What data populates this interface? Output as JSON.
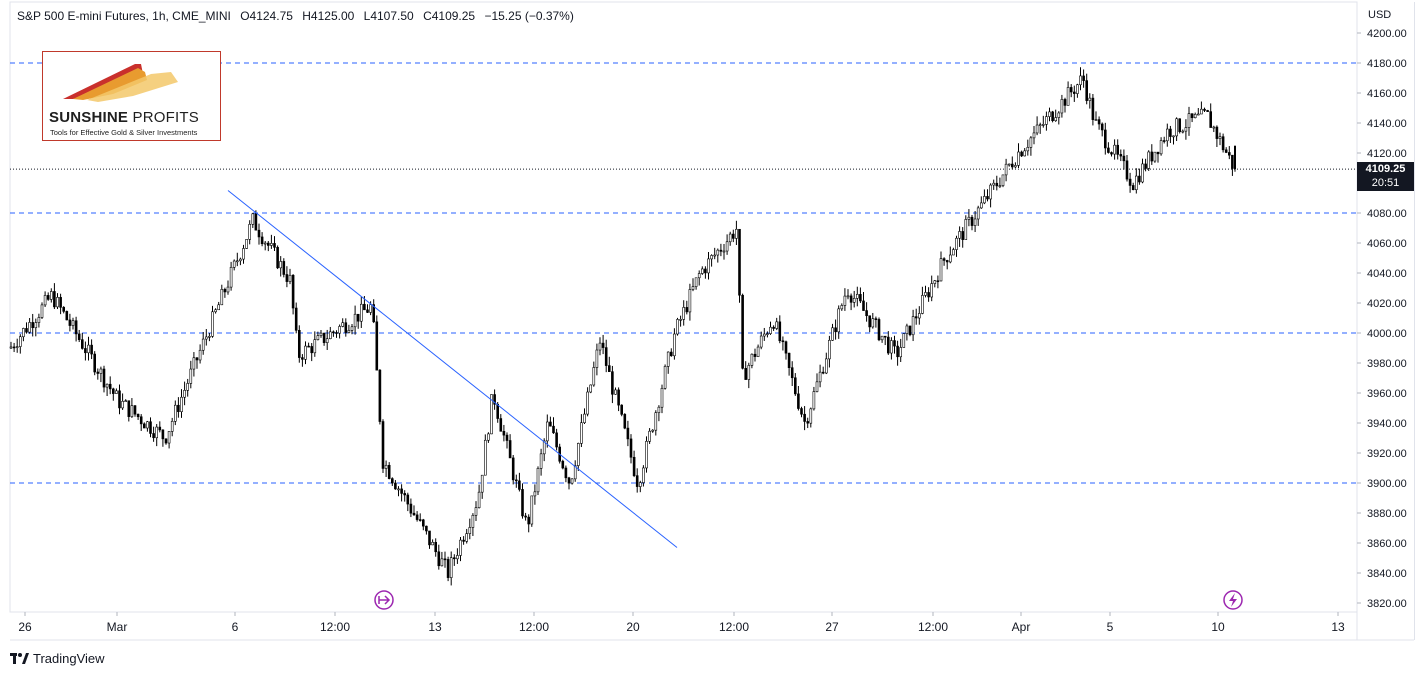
{
  "header": {
    "symbol": "S&P 500 E-mini Futures, 1h, CME_MINI",
    "open": "O4124.75",
    "high": "H4125.00",
    "low": "L4107.50",
    "close": "C4109.25",
    "change": "−15.25 (−0.37%)"
  },
  "currency": "USD",
  "logo": {
    "brand_bold": "SUNSHINE",
    "brand_light": "PROFITS",
    "tagline": "Tools for Effective Gold & Silver Investments"
  },
  "footer": {
    "brand": "TradingView"
  },
  "last_price": {
    "value": "4109.25",
    "countdown": "20:51"
  },
  "icons": {
    "event_left": "forward-arrow-circle-icon",
    "event_right": "lightning-circle-icon"
  },
  "colors": {
    "candle": "#000000",
    "support_lines": "#2962ff",
    "trendline": "#2962ff",
    "event_icons": "#9c27b0",
    "logo_border": "#c0392b"
  },
  "chart_data": {
    "type": "candlestick",
    "title": "S&P 500 E-mini Futures, 1h, CME_MINI",
    "xlabel": "",
    "ylabel": "USD",
    "ylim": [
      3810,
      4210
    ],
    "y_ticks": [
      3820,
      3840,
      3860,
      3880,
      3900,
      3920,
      3940,
      3960,
      3980,
      4000,
      4020,
      4040,
      4060,
      4080,
      4100,
      4120,
      4140,
      4160,
      4180,
      4200
    ],
    "x_tick_labels": [
      "26",
      "Mar",
      "6",
      "12:00",
      "13",
      "12:00",
      "20",
      "12:00",
      "27",
      "12:00",
      "Apr",
      "5",
      "10",
      "13"
    ],
    "horizontal_levels": [
      3900,
      4000,
      4080,
      4180
    ],
    "current_price_level": 4109.25,
    "trendline": {
      "from": [
        "Mar 6",
        4095
      ],
      "to": [
        "Mar 21",
        3857
      ]
    },
    "series": [
      {
        "path": [
          [
            "Feb 23 (open)",
            3990
          ],
          [
            "Feb 27",
            4025
          ],
          [
            "Mar 1",
            3955
          ],
          [
            "Mar 3",
            3930
          ],
          [
            "Mar 6",
            4075
          ],
          [
            "Mar 8",
            4035
          ],
          [
            "Mar 8 pm",
            3985
          ],
          [
            "Mar 9",
            4018
          ],
          [
            "Mar 10",
            3915
          ],
          [
            "Mar 13",
            3840
          ],
          [
            "Mar 14",
            3890
          ],
          [
            "Mar 15",
            3960
          ],
          [
            "Mar 16",
            3870
          ],
          [
            "Mar 17",
            3940
          ],
          [
            "Mar 17 pm",
            3900
          ],
          [
            "Mar 18",
            3995
          ],
          [
            "Mar 20",
            3900
          ],
          [
            "Mar 21",
            4000
          ],
          [
            "Mar 22",
            4040
          ],
          [
            "Mar 22 pm",
            4070
          ],
          [
            "Mar 23",
            3970
          ],
          [
            "Mar 24",
            4010
          ],
          [
            "Mar 24 pm",
            3940
          ],
          [
            "Mar 27",
            4030
          ],
          [
            "Mar 28",
            3985
          ],
          [
            "Mar 30",
            4050
          ],
          [
            "Apr 1",
            4120
          ],
          [
            "Apr 3",
            4170
          ],
          [
            "Apr 4",
            4140
          ],
          [
            "Apr 6",
            4100
          ],
          [
            "Apr 7",
            4135
          ],
          [
            "Apr 9",
            4145
          ],
          [
            "Apr 10",
            4109.25
          ]
        ]
      }
    ]
  }
}
